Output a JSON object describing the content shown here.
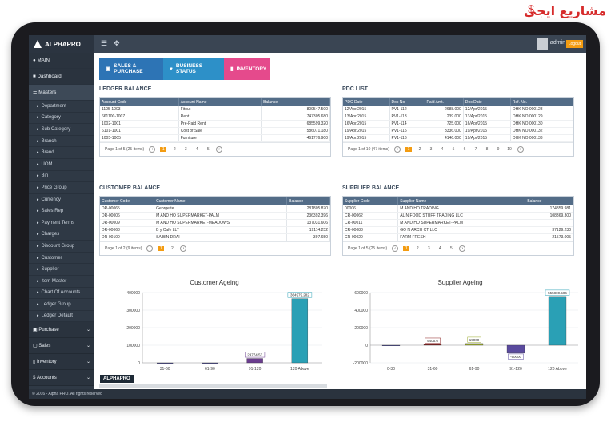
{
  "watermark": "مشاريع ايجي",
  "app": {
    "logo": "ALPHAPRO",
    "user": "admin",
    "logout": "Logout"
  },
  "sidebar": {
    "main": "MAIN",
    "dashboard": "Dashboard",
    "masters": "Masters",
    "items": [
      "Department",
      "Category",
      "Sub Category",
      "Branch",
      "Brand",
      "UOM",
      "Bin",
      "Price Group",
      "Currency",
      "Sales Rep",
      "Payment Terms",
      "Charges",
      "Discount Group",
      "Customer",
      "Supplier",
      "Item Master",
      "Chart Of Accounts",
      "Ledger Group",
      "Ledger Default"
    ],
    "sections": [
      "Purchase",
      "Sales",
      "Inventory",
      "Accounts"
    ]
  },
  "footer": "© 2016 - Alpha PRO. All rights reserved",
  "tabs": [
    "SALES & PURCHASE",
    "BUSINESS STATUS",
    "INVENTORY"
  ],
  "ledger": {
    "title": "LEDGER BALANCE",
    "headers": [
      "Account Code",
      "Account Name",
      "Balance"
    ],
    "rows": [
      [
        "1105-1003",
        "Fitout",
        "809547.500"
      ],
      [
        "661100-1007",
        "Rent",
        "747305.680"
      ],
      [
        "1002-1001",
        "Pre-Paid Rent",
        "685599.320"
      ],
      [
        "6101-1001",
        "Cost of Sale",
        "586071.180"
      ],
      [
        "1005-1005",
        "Furniture",
        "461776.900"
      ]
    ],
    "pager": "Page 1 of 5 (25 items)",
    "pages": [
      "1",
      "2",
      "3",
      "4",
      "5"
    ]
  },
  "pdc": {
    "title": "PDC LIST",
    "headers": [
      "PDC Date",
      "Doc No",
      "Paid Amt.",
      "Doc Date",
      "Ref. No."
    ],
    "rows": [
      [
        "12/Apr/2015",
        "PV1-112",
        "2688.000",
        "12/Apr/2015",
        "OHK NO 000128"
      ],
      [
        "13/Apr/2015",
        "PV1-113",
        "239.000",
        "13/Apr/2015",
        "OHK NO 000129"
      ],
      [
        "16/Apr/2015",
        "PV1-114",
        "725.000",
        "16/Apr/2015",
        "OHK NO 000130"
      ],
      [
        "19/Apr/2015",
        "PV1-115",
        "3336.000",
        "19/Apr/2015",
        "OHK NO 000132"
      ],
      [
        "19/Apr/2015",
        "PV1-116",
        "4146.000",
        "19/Apr/2015",
        "OHK NO 000133"
      ]
    ],
    "pager": "Page 1 of 10 (47 items)",
    "pages": [
      "1",
      "2",
      "3",
      "4",
      "5",
      "6",
      "7",
      "8",
      "9",
      "10"
    ]
  },
  "customer": {
    "title": "CUSTOMER BALANCE",
    "headers": [
      "Customer Code",
      "Customer Name",
      "Balance"
    ],
    "rows": [
      [
        "DR-00065",
        "Georgette",
        "281805.870"
      ],
      [
        "DR-00006",
        "M    AND HO    SUPERMARKET-PALM",
        "236392.396"
      ],
      [
        "DR-00009",
        "M    AND HO    SUPERMARKET-MEADOWS",
        "137031.606"
      ],
      [
        "DR-00068",
        "B    y Cafe LLT",
        "19114.252"
      ],
      [
        "DR-00100",
        "SA    BIN DRAI",
        "397.650"
      ]
    ],
    "pager": "Page 1 of 2 (9 items)",
    "pages": [
      "1",
      "2"
    ]
  },
  "supplier": {
    "title": "SUPPLIER BALANCE",
    "headers": [
      "Supplier Code",
      "Supplier Name",
      "Balance"
    ],
    "rows": [
      [
        "00006",
        "M    AND HO    TRADING",
        "174859.981"
      ],
      [
        "CR-00062",
        "AL    N FOOD STUFF TRADING LLC",
        "108369.300"
      ],
      [
        "CR-00011",
        "M    AND HO    SUPERMARKET-PALM",
        ""
      ],
      [
        "CR-00088",
        "GO    N ARCH    CT LLC",
        "37129.230"
      ],
      [
        "CR-00020",
        "FARM FRESH",
        "21573.005"
      ]
    ],
    "pager": "Page 1 of 5 (25 items)",
    "pages": [
      "1",
      "2",
      "3",
      "4",
      "5"
    ]
  },
  "badge": "ALPHAPRO",
  "chart_data": [
    {
      "type": "bar",
      "title": "Customer Ageing",
      "categories": [
        "31-60",
        "61-90",
        "91-120",
        "120 Above"
      ],
      "values": [
        0,
        0,
        24774.53,
        364979.282
      ],
      "value_labels": [
        "",
        "",
        "24774.53",
        "364979.282"
      ],
      "ylim": [
        0,
        400000
      ],
      "yticks": [
        "400000",
        "300000",
        "200000",
        "100000",
        "0"
      ],
      "colors": [
        "#3b3b99",
        "#3b3b99",
        "#6a3d8e",
        "#2aa0b5"
      ]
    },
    {
      "type": "bar",
      "title": "Supplier Ageing",
      "categories": [
        "0-30",
        "31-60",
        "61-90",
        "91-120",
        "120 Above"
      ],
      "values": [
        -5000,
        9405.6,
        19000,
        -90000,
        555800.506
      ],
      "value_labels": [
        "",
        "9405.6",
        "19000",
        "-90000",
        "555800.506"
      ],
      "ylim": [
        -200000,
        600000
      ],
      "yticks": [
        "600000",
        "400000",
        "200000",
        "0",
        "-200000"
      ],
      "colors": [
        "#3b3b99",
        "#8b2020",
        "#9aaa2a",
        "#5a4a9e",
        "#2aa0b5"
      ]
    }
  ]
}
